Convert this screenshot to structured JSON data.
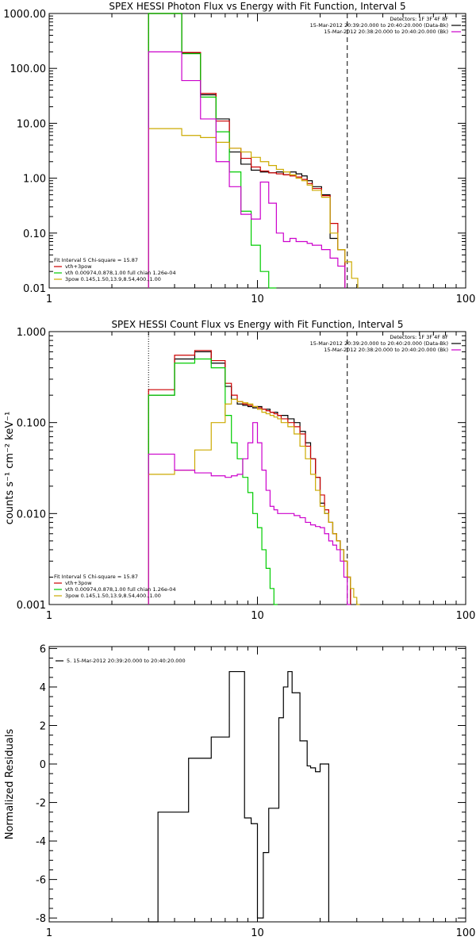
{
  "chart_data": [
    {
      "type": "line",
      "title": "SPEX HESSI Photon Flux vs Energy with Fit Function, Interval 5",
      "xlabel": "",
      "ylabel": "",
      "xscale": "log",
      "yscale": "log",
      "xlim": [
        1,
        100
      ],
      "ylim": [
        0.01,
        1000
      ],
      "xticks": [
        {
          "v": 1,
          "label": "1"
        },
        {
          "v": 10,
          "label": "10"
        },
        {
          "v": 100,
          "label": "100"
        }
      ],
      "yticks": [
        {
          "v": 1000,
          "label": "1000.00"
        },
        {
          "v": 100,
          "label": "100.00"
        },
        {
          "v": 10,
          "label": "10.00"
        },
        {
          "v": 1,
          "label": "1.00"
        },
        {
          "v": 0.1,
          "label": "0.10"
        },
        {
          "v": 0.01,
          "label": "0.01"
        }
      ],
      "vlines": [
        {
          "x": 3,
          "style": "dotted",
          "color": "#000000"
        },
        {
          "x": 27,
          "style": "dashed",
          "color": "#000000"
        }
      ],
      "legend_top_right": [
        {
          "text": "Detectors: 1F 3F 4F 8F",
          "color": null
        },
        {
          "text": "15-Mar-2012 20:39:20.000 to 20:40:20.000 (Data-Bk)",
          "color": "#000000"
        },
        {
          "text": "15-Mar-2012 20:38:20.000 to 20:40:20.000 (Bk)",
          "color": "#cc00cc"
        }
      ],
      "legend_bottom_left": [
        {
          "text": "Fit Interval 5   Chi-square = 15.87",
          "color": null
        },
        {
          "text": "vth+3pow",
          "color": "#cc0000"
        },
        {
          "text": "vth 0.00974,0.878,1.00   full chian 1.26e-04",
          "color": "#00cc00"
        },
        {
          "text": "3pow 0.145,1.50,13.9,8.54,400.,1.00",
          "color": "#ccaa00"
        }
      ],
      "bin_edges": [
        3,
        3.33,
        4.33,
        5.33,
        6.33,
        7.33,
        8.33,
        9.33,
        10.33,
        11.33,
        12.33,
        13.33,
        14.33,
        15.33,
        16.33,
        17.33,
        18.33,
        20.33,
        22.33,
        24.33,
        26.33,
        28.33,
        30.33
      ],
      "series": [
        {
          "name": "",
          "color": "#000000",
          "values": [
            1000,
            1000,
            190,
            33,
            12,
            3,
            1.8,
            1.4,
            1.3,
            1.25,
            1.3,
            1.15,
            1.3,
            1.2,
            1.1,
            0.9,
            0.7,
            0.5,
            0.08,
            0.05,
            null,
            null
          ]
        },
        {
          "name": "",
          "color": "#cc0000",
          "values": [
            1000,
            1000,
            195,
            35,
            11,
            3.5,
            2.3,
            1.6,
            1.35,
            1.25,
            1.2,
            1.15,
            1.1,
            1.05,
            0.95,
            0.8,
            0.65,
            0.48,
            0.15,
            0.05,
            null,
            null
          ]
        },
        {
          "name": "",
          "color": "#00cc00",
          "values": [
            1000,
            1000,
            185,
            30,
            7,
            1.3,
            0.25,
            0.06,
            0.02,
            0.01,
            null,
            null,
            null,
            null,
            null,
            null,
            null,
            null,
            null,
            null,
            null,
            null
          ]
        },
        {
          "name": "",
          "color": "#ccaa00",
          "values": [
            8,
            8,
            6,
            5.5,
            4.5,
            3.5,
            3,
            2.4,
            2.0,
            1.7,
            1.45,
            1.3,
            1.15,
            1.0,
            0.9,
            0.75,
            0.6,
            0.45,
            0.1,
            0.05,
            0.03,
            0.015
          ]
        },
        {
          "name": "",
          "color": "#cc00cc",
          "values": [
            200,
            200,
            60,
            12,
            2,
            0.7,
            0.22,
            0.18,
            0.85,
            0.35,
            0.1,
            0.07,
            0.08,
            0.07,
            0.07,
            0.065,
            0.06,
            0.05,
            0.035,
            0.025,
            null,
            null
          ]
        }
      ]
    },
    {
      "type": "line",
      "title": "SPEX HESSI Count Flux vs Energy with Fit Function, Interval 5",
      "xlabel": "",
      "ylabel": "counts s⁻¹ cm⁻² keV⁻¹",
      "xscale": "log",
      "yscale": "log",
      "xlim": [
        1,
        100
      ],
      "ylim": [
        0.001,
        1
      ],
      "xticks": [
        {
          "v": 1,
          "label": "1"
        },
        {
          "v": 10,
          "label": "10"
        },
        {
          "v": 100,
          "label": "100"
        }
      ],
      "yticks": [
        {
          "v": 1,
          "label": "1.000"
        },
        {
          "v": 0.1,
          "label": "0.100"
        },
        {
          "v": 0.01,
          "label": "0.010"
        },
        {
          "v": 0.001,
          "label": "0.001"
        }
      ],
      "vlines": [
        {
          "x": 3,
          "style": "dotted",
          "color": "#000000"
        },
        {
          "x": 27,
          "style": "dashed",
          "color": "#000000"
        }
      ],
      "legend_top_right": [
        {
          "text": "Detectors: 1F 3F 4F 8F",
          "color": null
        },
        {
          "text": "15-Mar-2012 20:39:20.000 to 20:40:20.000 (Data-Bk)",
          "color": "#000000"
        },
        {
          "text": "15-Mar-2012 20:38:20.000 to 20:40:20.000 (Bk)",
          "color": "#cc00cc"
        }
      ],
      "legend_bottom_left": [
        {
          "text": "Fit Interval 5   Chi-square = 15.87",
          "color": null
        },
        {
          "text": "vth+3pow",
          "color": "#cc0000"
        },
        {
          "text": "vth 0.00974,0.878,1.00   full chian 1.26e-04",
          "color": "#00cc00"
        },
        {
          "text": "3pow 0.145,1.50,13.9,8.54,400.,1.00",
          "color": "#ccaa00"
        }
      ],
      "bin_edges": [
        3,
        4,
        5,
        6,
        7,
        7.5,
        8,
        8.5,
        9,
        9.5,
        10,
        10.5,
        11,
        11.5,
        12,
        12.5,
        13,
        14,
        15,
        16,
        17,
        18,
        19,
        20,
        21,
        22,
        23,
        24,
        25,
        26,
        27,
        28,
        29,
        30,
        31,
        32,
        33,
        34
      ],
      "series": [
        {
          "name": "",
          "color": "#000000",
          "values": [
            0.2,
            0.5,
            0.6,
            0.45,
            0.25,
            0.18,
            0.16,
            0.155,
            0.15,
            0.145,
            0.15,
            0.14,
            0.14,
            0.13,
            0.13,
            0.12,
            0.12,
            0.11,
            0.1,
            0.08,
            0.06,
            0.04,
            0.025,
            0.013,
            0.01,
            0.008,
            0.006,
            0.005,
            0.004,
            0.003,
            0.002,
            null,
            null,
            null,
            null,
            null,
            null
          ]
        },
        {
          "name": "",
          "color": "#cc0000",
          "values": [
            0.23,
            0.55,
            0.62,
            0.48,
            0.27,
            0.2,
            0.17,
            0.16,
            0.155,
            0.15,
            0.145,
            0.14,
            0.135,
            0.13,
            0.125,
            0.12,
            0.11,
            0.1,
            0.09,
            0.075,
            0.055,
            0.04,
            0.025,
            0.016,
            0.011,
            0.008,
            0.006,
            0.005,
            0.004,
            0.003,
            0.002,
            null,
            null,
            null,
            null,
            null,
            null
          ]
        },
        {
          "name": "",
          "color": "#00cc00",
          "values": [
            0.2,
            0.45,
            0.5,
            0.4,
            0.12,
            0.06,
            0.04,
            0.025,
            0.017,
            0.01,
            0.007,
            0.004,
            0.0025,
            0.0015,
            0.001,
            null,
            null,
            null,
            null,
            null,
            null,
            null,
            null,
            null,
            null,
            null,
            null,
            null,
            null,
            null,
            null,
            null,
            null,
            null,
            null,
            null,
            null
          ]
        },
        {
          "name": "",
          "color": "#ccaa00",
          "values": [
            0.027,
            0.03,
            0.05,
            0.1,
            0.16,
            0.18,
            0.17,
            0.165,
            0.16,
            0.15,
            0.14,
            0.13,
            0.125,
            0.12,
            0.115,
            0.11,
            0.1,
            0.09,
            0.075,
            0.055,
            0.04,
            0.027,
            0.018,
            0.012,
            0.01,
            0.008,
            0.006,
            0.005,
            0.004,
            0.003,
            0.002,
            0.0015,
            0.0012,
            0.001,
            null,
            null,
            null
          ]
        },
        {
          "name": "",
          "color": "#cc00cc",
          "values": [
            0.045,
            0.03,
            0.028,
            0.026,
            0.025,
            0.026,
            0.027,
            0.04,
            0.06,
            0.1,
            0.06,
            0.03,
            0.018,
            0.012,
            0.011,
            0.01,
            0.01,
            0.01,
            0.0095,
            0.009,
            0.008,
            0.0075,
            0.0072,
            0.007,
            0.006,
            0.005,
            0.0045,
            0.004,
            0.003,
            0.002,
            0.001,
            null,
            null,
            null,
            null,
            null,
            null
          ]
        }
      ]
    },
    {
      "type": "line",
      "title": "",
      "xlabel": "",
      "ylabel": "Normalized Residuals",
      "xscale": "log",
      "yscale": "linear",
      "xlim": [
        1,
        100
      ],
      "ylim": [
        -8.2,
        6.1
      ],
      "xticks": [
        {
          "v": 1,
          "label": "1"
        },
        {
          "v": 10,
          "label": "10"
        },
        {
          "v": 100,
          "label": "100"
        }
      ],
      "yticks": [
        {
          "v": 6,
          "label": "6"
        },
        {
          "v": 4,
          "label": "4"
        },
        {
          "v": 2,
          "label": "2"
        },
        {
          "v": 0,
          "label": "0"
        },
        {
          "v": -2,
          "label": "-2"
        },
        {
          "v": -4,
          "label": "-4"
        },
        {
          "v": -6,
          "label": "-6"
        },
        {
          "v": -8,
          "label": "-8"
        }
      ],
      "legend_top_left": [
        {
          "text": "5. 15-Mar-2012 20:39:20.000 to 20:40:20.000",
          "color": "#000000"
        }
      ],
      "bin_edges": [
        3,
        3.33,
        4,
        4.67,
        5.33,
        6,
        6.67,
        7.33,
        8,
        8.67,
        9.33,
        10,
        10.67,
        11.33,
        12,
        12.67,
        13.33,
        14,
        14.67,
        15.33,
        16,
        16.67,
        17.33,
        18,
        19,
        20,
        21,
        22,
        23,
        24,
        25,
        26,
        27
      ],
      "series": [
        {
          "name": "",
          "color": "#000000",
          "values": [
            -8.2,
            -2.5,
            -2.5,
            0.3,
            0.3,
            1.4,
            1.4,
            4.8,
            4.8,
            -2.8,
            -3.1,
            -8,
            -4.6,
            -2.3,
            -2.3,
            2.4,
            4,
            4.8,
            3.7,
            3.7,
            1.2,
            1.2,
            -0.1,
            -0.2,
            -0.4,
            0,
            0,
            null,
            null,
            null,
            null,
            null
          ]
        }
      ]
    }
  ]
}
